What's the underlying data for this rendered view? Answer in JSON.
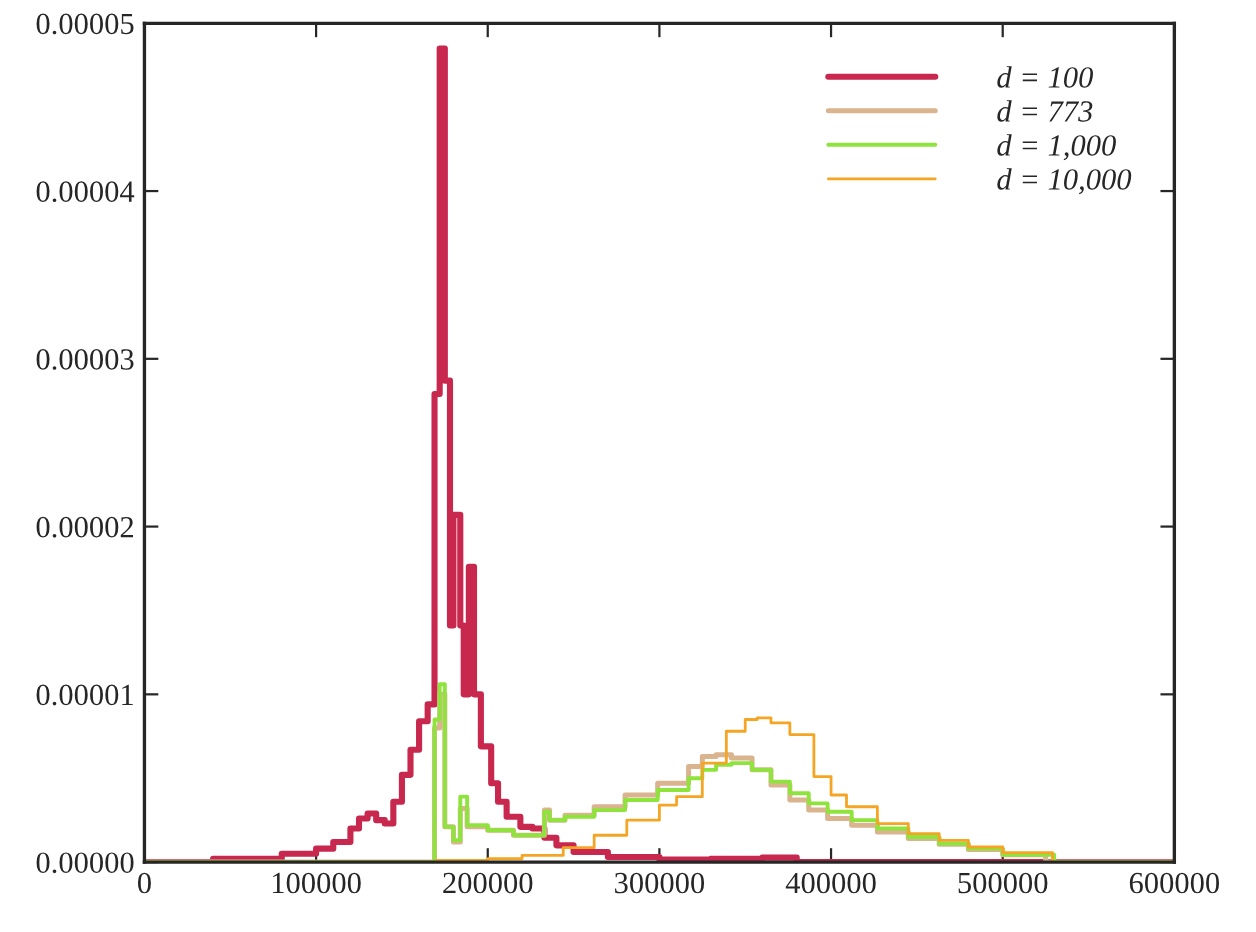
{
  "chart_data": {
    "type": "step",
    "series": [
      {
        "name": "d = 100",
        "color": "#c8284e",
        "x": [
          0,
          40000,
          80000,
          100000,
          110000,
          120000,
          125000,
          130000,
          135000,
          140000,
          145000,
          150000,
          155000,
          160000,
          165000,
          169000,
          172000,
          175000,
          178000,
          180000,
          184000,
          186000,
          189000,
          192000,
          196000,
          202000,
          206000,
          211000,
          219000,
          226000,
          233000,
          240000,
          250000,
          270000,
          300000,
          330000,
          360000,
          380000,
          600000
        ],
        "values": [
          0,
          2e-07,
          5e-07,
          8e-07,
          1.2e-06,
          2e-06,
          2.6e-06,
          2.9e-06,
          2.5e-06,
          2.3e-06,
          3.6e-06,
          5.2e-06,
          6.7e-06,
          8.4e-06,
          9.4e-06,
          2.79e-05,
          4.85e-05,
          2.87e-05,
          1.41e-05,
          2.07e-05,
          1.41e-05,
          1e-05,
          1.76e-05,
          1e-05,
          6.9e-06,
          4.7e-06,
          3.6e-06,
          2.7e-06,
          2.1e-06,
          2e-06,
          1.45e-06,
          1e-06,
          6e-07,
          3e-07,
          1.5e-07,
          2e-07,
          2.7e-07,
          0,
          0
        ]
      },
      {
        "name": "d = 773",
        "color": "#d9b48e",
        "x": [
          0,
          169000,
          172000,
          175000,
          180000,
          184000,
          188000,
          200000,
          215000,
          233000,
          236000,
          245000,
          262000,
          280000,
          299000,
          317000,
          325000,
          333000,
          342000,
          354000,
          365000,
          376000,
          387000,
          398000,
          412000,
          427000,
          445000,
          463000,
          480000,
          500000,
          525000,
          600000
        ],
        "values": [
          0,
          8e-06,
          1e-05,
          2.1e-06,
          1.2e-06,
          3.2e-06,
          2.1e-06,
          1.9e-06,
          1.6e-06,
          3.1e-06,
          2.5e-06,
          2.8e-06,
          3.3e-06,
          4e-06,
          4.7e-06,
          5.7e-06,
          6.3e-06,
          6.4e-06,
          6.2e-06,
          5.5e-06,
          4.6e-06,
          3.7e-06,
          3.1e-06,
          2.6e-06,
          2.2e-06,
          1.8e-06,
          1.4e-06,
          1.06e-06,
          7.5e-07,
          4.4e-07,
          0,
          0
        ]
      },
      {
        "name": "d = 1,000",
        "color": "#8ee43c",
        "x": [
          0,
          169000,
          172000,
          175000,
          180000,
          184000,
          188000,
          200000,
          215000,
          233000,
          236000,
          245000,
          262000,
          280000,
          299000,
          317000,
          325000,
          333000,
          342000,
          354000,
          365000,
          376000,
          387000,
          398000,
          412000,
          427000,
          445000,
          463000,
          480000,
          500000,
          530000,
          600000
        ],
        "values": [
          0,
          8.5e-06,
          1.06e-05,
          2.1e-06,
          1.3e-06,
          3.9e-06,
          2.2e-06,
          1.9e-06,
          1.6e-06,
          3e-06,
          2.5e-06,
          2.7e-06,
          3.1e-06,
          3.7e-06,
          4.3e-06,
          5e-06,
          5.5e-06,
          5.8e-06,
          5.9e-06,
          5.5e-06,
          4.8e-06,
          4.1e-06,
          3.5e-06,
          3e-06,
          2.5e-06,
          2e-06,
          1.5e-06,
          1.1e-06,
          8e-07,
          4.4e-07,
          0,
          0
        ]
      },
      {
        "name": "d = 10,000",
        "color": "#f5a524",
        "x": [
          0,
          170000,
          200000,
          220000,
          244000,
          262000,
          281000,
          300000,
          310000,
          325000,
          339000,
          350000,
          357000,
          365000,
          376000,
          390000,
          400000,
          409000,
          427000,
          445000,
          463000,
          480000,
          500000,
          529000,
          600000
        ],
        "values": [
          0,
          1e-07,
          2e-07,
          4e-07,
          8.6e-07,
          1.6e-06,
          2.5e-06,
          3.4e-06,
          3.9e-06,
          5.9e-06,
          7.8e-06,
          8.5e-06,
          8.6e-06,
          8.3e-06,
          7.6e-06,
          5.1e-06,
          4e-06,
          3.3e-06,
          2.3e-06,
          1.7e-06,
          1.3e-06,
          9e-07,
          5.6e-07,
          0,
          0
        ]
      }
    ],
    "xlim": [
      0,
      600000
    ],
    "xticks": [
      0,
      100000,
      200000,
      300000,
      400000,
      500000,
      600000
    ],
    "ylim": [
      0,
      5e-05
    ],
    "yticks": [
      {
        "value": 0,
        "label": "0.00000"
      },
      {
        "value": 1e-05,
        "label": "0.00001"
      },
      {
        "value": 2e-05,
        "label": "0.00002"
      },
      {
        "value": 3e-05,
        "label": "0.00003"
      },
      {
        "value": 4e-05,
        "label": "0.00004"
      },
      {
        "value": 5e-05,
        "label": "0.00005"
      }
    ],
    "legend": "top right",
    "grid": false,
    "line_style": "solid"
  }
}
